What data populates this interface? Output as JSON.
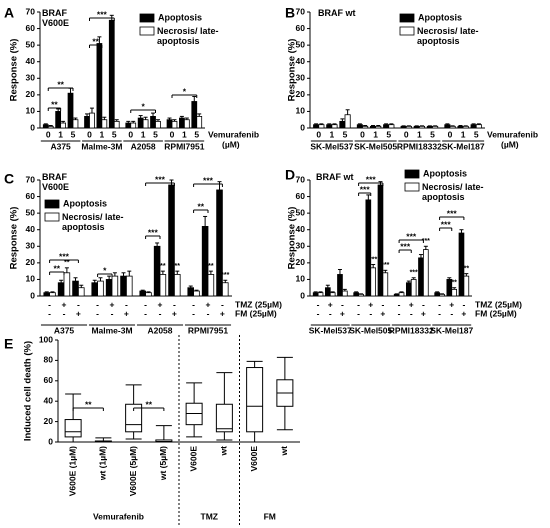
{
  "chart_data": [
    {
      "type": "bar",
      "panel": "A",
      "label": "BRAF V600E",
      "ylabel": "Response (%)",
      "categories": [
        "0",
        "1",
        "5",
        "0",
        "1",
        "5",
        "0",
        "1",
        "5",
        "0",
        "1",
        "5"
      ],
      "groups": [
        "A375",
        "Malme-3M",
        "A2058",
        "RPMI7951"
      ],
      "treatment": "Vemurafenib",
      "unit": "(µM)",
      "ylim": [
        0,
        70
      ],
      "yticks": [
        0,
        10,
        20,
        30,
        40,
        50,
        60,
        70
      ],
      "series": [
        {
          "name": "Apoptosis",
          "color": "#000000",
          "values": [
            2,
            10,
            21,
            7,
            51,
            65,
            3,
            6,
            7,
            5,
            6,
            16
          ],
          "errors": [
            0.5,
            1.5,
            3,
            1.5,
            4,
            3,
            1,
            1.5,
            2,
            1,
            1,
            3
          ]
        },
        {
          "name": "Necrosis/ late-apoptosis",
          "color": "#ffffff",
          "values": [
            1,
            3,
            5,
            9,
            5,
            4,
            3,
            5,
            4,
            4,
            5,
            7
          ],
          "errors": [
            0.5,
            1,
            1,
            3,
            1.5,
            1,
            1,
            1.5,
            1,
            1,
            1,
            1.5
          ]
        }
      ],
      "annotations": [
        "**",
        "**",
        "**",
        "***",
        "*",
        "*"
      ]
    },
    {
      "type": "bar",
      "panel": "B",
      "label": "BRAF wt",
      "ylabel": "Response (%)",
      "categories": [
        "0",
        "1",
        "5",
        "0",
        "1",
        "5",
        "0",
        "1",
        "5",
        "0",
        "1",
        "5"
      ],
      "groups": [
        "SK-Mel537",
        "SK-Mel505",
        "RPMI18332",
        "SK-Mel187"
      ],
      "treatment": "Vemurafenib",
      "unit": "(µM)",
      "ylim": [
        0,
        70
      ],
      "yticks": [
        0,
        10,
        20,
        30,
        40,
        50,
        60,
        70
      ],
      "series": [
        {
          "name": "Apoptosis",
          "color": "#000000",
          "values": [
            2,
            2,
            4,
            2,
            1,
            2,
            1,
            1,
            1,
            2,
            1,
            2
          ],
          "errors": [
            0.5,
            0.5,
            1.5,
            0.5,
            0.5,
            0.5,
            0.3,
            0.3,
            0.3,
            0.5,
            0.5,
            0.5
          ]
        },
        {
          "name": "Necrosis/ late-apoptosis",
          "color": "#ffffff",
          "values": [
            2,
            2,
            8,
            1,
            1,
            2,
            1,
            1,
            1,
            1,
            1,
            2
          ],
          "errors": [
            0.5,
            0.5,
            3,
            0.5,
            0.5,
            0.5,
            0.3,
            0.3,
            0.3,
            0.3,
            0.3,
            0.5
          ]
        }
      ],
      "annotations": []
    },
    {
      "type": "bar",
      "panel": "C",
      "label": "BRAF V600E",
      "ylabel": "Response (%)",
      "conditions": [
        {
          "name": "TMZ (25µM)",
          "signs": [
            "-",
            "+",
            "-",
            "-",
            "+",
            "-",
            "-",
            "+",
            "-",
            "-",
            "+",
            "-"
          ]
        },
        {
          "name": "FM (25µM)",
          "signs": [
            "-",
            "-",
            "+",
            "-",
            "-",
            "+",
            "-",
            "-",
            "+",
            "-",
            "-",
            "+"
          ]
        }
      ],
      "groups": [
        "A375",
        "Malme-3M",
        "A2058",
        "RPMI7951"
      ],
      "ylim": [
        0,
        70
      ],
      "yticks": [
        0,
        10,
        20,
        30,
        40,
        50,
        60,
        70
      ],
      "series": [
        {
          "name": "Apoptosis",
          "color": "#000000",
          "values": [
            2,
            8,
            9,
            8,
            10,
            12,
            3,
            30,
            67,
            5,
            42,
            64
          ],
          "errors": [
            0.5,
            1.5,
            2,
            1.5,
            2,
            2,
            0.5,
            2,
            3,
            1,
            6,
            5
          ],
          "stars": [
            null,
            null,
            null,
            null,
            null,
            null,
            null,
            null,
            null,
            null,
            null,
            null
          ]
        },
        {
          "name": "Necrosis/ late-apoptosis",
          "color": "#ffffff",
          "values": [
            2,
            14,
            5,
            9,
            12,
            12,
            2,
            13,
            13,
            3,
            13,
            8
          ],
          "errors": [
            0.5,
            3,
            1.5,
            2,
            2,
            3,
            0.5,
            2,
            2,
            0.5,
            2,
            1.5
          ],
          "stars": [
            null,
            "**",
            null,
            null,
            null,
            null,
            null,
            "**",
            "**",
            null,
            "**",
            "***"
          ]
        }
      ],
      "annotations": [
        "**",
        "***",
        "*",
        "***",
        "***",
        "**",
        "***"
      ]
    },
    {
      "type": "bar",
      "panel": "D",
      "label": "BRAF wt",
      "ylabel": "Response (%)",
      "conditions": [
        {
          "name": "TMZ (25µM)",
          "signs": [
            "-",
            "+",
            "-",
            "-",
            "+",
            "-",
            "-",
            "+",
            "-",
            "-",
            "+",
            "-"
          ]
        },
        {
          "name": "FM (25µM)",
          "signs": [
            "-",
            "-",
            "+",
            "-",
            "-",
            "+",
            "-",
            "-",
            "+",
            "-",
            "-",
            "+"
          ]
        }
      ],
      "groups": [
        "SK-Mel537",
        "SK-Mel505",
        "RPMI18332",
        "SK-Mel187"
      ],
      "ylim": [
        0,
        70
      ],
      "yticks": [
        0,
        10,
        20,
        30,
        40,
        50,
        60,
        70
      ],
      "series": [
        {
          "name": "Apoptosis",
          "color": "#000000",
          "values": [
            2,
            5,
            13,
            2,
            58,
            67,
            1,
            8,
            23,
            2,
            10,
            38
          ],
          "errors": [
            0.5,
            1.5,
            3,
            0.5,
            3,
            2,
            0.3,
            1,
            2,
            0.5,
            1,
            2
          ],
          "stars": [
            null,
            null,
            null,
            null,
            null,
            null,
            null,
            null,
            null,
            null,
            null,
            null
          ]
        },
        {
          "name": "Necrosis/ late-apoptosis",
          "color": "#ffffff",
          "values": [
            2,
            2,
            3,
            1,
            17,
            14,
            2,
            10,
            28,
            1,
            4,
            12
          ],
          "errors": [
            0.5,
            0.5,
            1,
            0.3,
            2,
            1.5,
            0.5,
            1,
            2,
            0.3,
            1,
            1.5
          ],
          "stars": [
            null,
            null,
            null,
            null,
            "***",
            "***",
            null,
            "***",
            "***",
            null,
            "**",
            "**"
          ]
        }
      ],
      "annotations": [
        "***",
        "***",
        "***",
        "***",
        "***",
        "***"
      ]
    },
    {
      "type": "box",
      "panel": "E",
      "ylabel": "Induced cell death (%)",
      "categories": [
        "V600E (1µM)",
        "wt (1µM)",
        "V600E (5µM)",
        "wt (5µM)",
        "V600E",
        "wt",
        "V600E",
        "wt"
      ],
      "groups": [
        "Vemurafenib",
        "TMZ",
        "FM"
      ],
      "ylim": [
        0,
        100
      ],
      "yticks": [
        0,
        20,
        40,
        60,
        80,
        100
      ],
      "boxes": {
        "min": [
          0,
          0,
          3,
          0,
          5,
          2,
          0,
          12
        ],
        "q1": [
          5,
          0,
          10,
          0,
          17,
          10,
          10,
          35
        ],
        "median": [
          10,
          0.5,
          17,
          0.5,
          28,
          13,
          35,
          48
        ],
        "q3": [
          22,
          1,
          37,
          2,
          38,
          37,
          73,
          61
        ],
        "max": [
          47,
          4,
          56,
          16,
          58,
          68,
          79,
          83
        ]
      },
      "annotations": [
        "**",
        "**"
      ]
    }
  ]
}
